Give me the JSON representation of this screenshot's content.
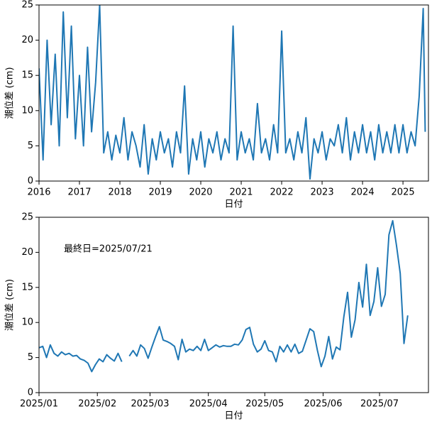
{
  "chart_data": [
    {
      "type": "line",
      "xlabel": "日付",
      "ylabel": "潮位差 (cm)",
      "color": "#1f77b4",
      "x": [
        2016.0,
        2016.1,
        2016.2,
        2016.3,
        2016.4,
        2016.5,
        2016.6,
        2016.7,
        2016.8,
        2016.9,
        2017.0,
        2017.1,
        2017.2,
        2017.3,
        2017.4,
        2017.5,
        2017.6,
        2017.7,
        2017.8,
        2017.9,
        2018.0,
        2018.1,
        2018.2,
        2018.3,
        2018.4,
        2018.5,
        2018.6,
        2018.7,
        2018.8,
        2018.9,
        2019.0,
        2019.1,
        2019.2,
        2019.3,
        2019.4,
        2019.5,
        2019.6,
        2019.7,
        2019.8,
        2019.9,
        2020.0,
        2020.1,
        2020.2,
        2020.3,
        2020.4,
        2020.5,
        2020.6,
        2020.7,
        2020.8,
        2020.9,
        2021.0,
        2021.1,
        2021.2,
        2021.3,
        2021.4,
        2021.5,
        2021.6,
        2021.7,
        2021.8,
        2021.9,
        2022.0,
        2022.1,
        2022.2,
        2022.3,
        2022.4,
        2022.5,
        2022.6,
        2022.7,
        2022.8,
        2022.9,
        2023.0,
        2023.1,
        2023.2,
        2023.3,
        2023.4,
        2023.5,
        2023.6,
        2023.7,
        2023.8,
        2023.9,
        2024.0,
        2024.1,
        2024.2,
        2024.3,
        2024.4,
        2024.5,
        2024.6,
        2024.7,
        2024.8,
        2024.9,
        2025.0,
        2025.1,
        2025.2,
        2025.3,
        2025.4,
        2025.5,
        2025.55
      ],
      "values": [
        16,
        3,
        20,
        8,
        18,
        5,
        24,
        9,
        22,
        6,
        15,
        5,
        19,
        7,
        14,
        25,
        4,
        7,
        3,
        6.5,
        4,
        9,
        3,
        7,
        5,
        2,
        8,
        1,
        6,
        3,
        7,
        4,
        6,
        2,
        7,
        4,
        13.5,
        1,
        6,
        3,
        7,
        2,
        6,
        4,
        7,
        3,
        6,
        4,
        22,
        3,
        7,
        4,
        6,
        3,
        11,
        4,
        6,
        3,
        8,
        4,
        21.3,
        4,
        6,
        3,
        7,
        4,
        9,
        0.3,
        6,
        4,
        7,
        3,
        6,
        5,
        8,
        4,
        9,
        3,
        7,
        4,
        8,
        4,
        7,
        3,
        8,
        4,
        7,
        4,
        8,
        4,
        8,
        4,
        7,
        5,
        12,
        24.5,
        7
      ],
      "xlim": [
        2016,
        2025.63
      ],
      "xticks": [
        2016,
        2017,
        2018,
        2019,
        2020,
        2021,
        2022,
        2023,
        2024,
        2025
      ],
      "ylim": [
        0,
        25
      ],
      "yticks": [
        0,
        5,
        10,
        15,
        20,
        25
      ]
    },
    {
      "type": "line",
      "xlabel": "日付",
      "ylabel": "潮位差 (cm)",
      "color": "#1f77b4",
      "annotation": "最終日=2025/07/21",
      "x": [
        0,
        2,
        4,
        6,
        8,
        10,
        12,
        14,
        16,
        18,
        20,
        22,
        24,
        26,
        28,
        30,
        32,
        34,
        36,
        38,
        40,
        42,
        44,
        46,
        48,
        50,
        52,
        54,
        56,
        58,
        60,
        62,
        64,
        66,
        68,
        70,
        72,
        74,
        76,
        78,
        80,
        82,
        84,
        86,
        88,
        90,
        92,
        94,
        96,
        98,
        100,
        102,
        104,
        106,
        108,
        110,
        112,
        114,
        116,
        118,
        120,
        122,
        124,
        126,
        128,
        130,
        132,
        134,
        136,
        138,
        140,
        142,
        144,
        146,
        148,
        150,
        152,
        154,
        156,
        158,
        160,
        162,
        164,
        166,
        168,
        170,
        172,
        174,
        176,
        178,
        180,
        182,
        184,
        186,
        188,
        190,
        192,
        194,
        196
      ],
      "values": [
        6.4,
        6.6,
        5.0,
        6.8,
        5.6,
        5.2,
        5.8,
        5.4,
        5.6,
        5.2,
        5.3,
        4.8,
        4.6,
        4.2,
        3.0,
        4.0,
        4.8,
        4.4,
        5.4,
        4.9,
        4.5,
        5.6,
        4.4,
        null,
        5.2,
        6.0,
        5.2,
        6.8,
        6.3,
        4.9,
        6.5,
        8.0,
        9.4,
        7.5,
        7.3,
        7.0,
        6.6,
        4.7,
        7.6,
        5.8,
        6.2,
        6.0,
        6.6,
        6.0,
        7.6,
        6.0,
        6.4,
        6.8,
        6.5,
        6.7,
        6.6,
        6.6,
        6.9,
        6.8,
        7.5,
        9.0,
        9.3,
        6.9,
        5.8,
        6.2,
        7.4,
        6.0,
        5.8,
        4.4,
        6.6,
        5.8,
        6.8,
        5.8,
        6.9,
        5.6,
        5.9,
        7.5,
        9.1,
        8.7,
        6.0,
        3.7,
        5.2,
        8.0,
        4.8,
        6.5,
        6.1,
        10.8,
        14.3,
        7.9,
        10.4,
        15.7,
        12.2,
        18.3,
        11.0,
        13.0,
        17.8,
        12.3,
        14.0,
        22.5,
        24.5,
        21.0,
        17.0,
        7.0,
        11.0
      ],
      "xlim": [
        0,
        207
      ],
      "xticks": [
        {
          "value": 0,
          "label": "2025/01"
        },
        {
          "value": 31,
          "label": "2025/02"
        },
        {
          "value": 59,
          "label": "2025/03"
        },
        {
          "value": 90,
          "label": "2025/04"
        },
        {
          "value": 120,
          "label": "2025/05"
        },
        {
          "value": 151,
          "label": "2025/06"
        },
        {
          "value": 181,
          "label": "2025/07"
        }
      ],
      "ylim": [
        0,
        25
      ],
      "yticks": [
        0,
        5,
        10,
        15,
        20,
        25
      ]
    }
  ]
}
